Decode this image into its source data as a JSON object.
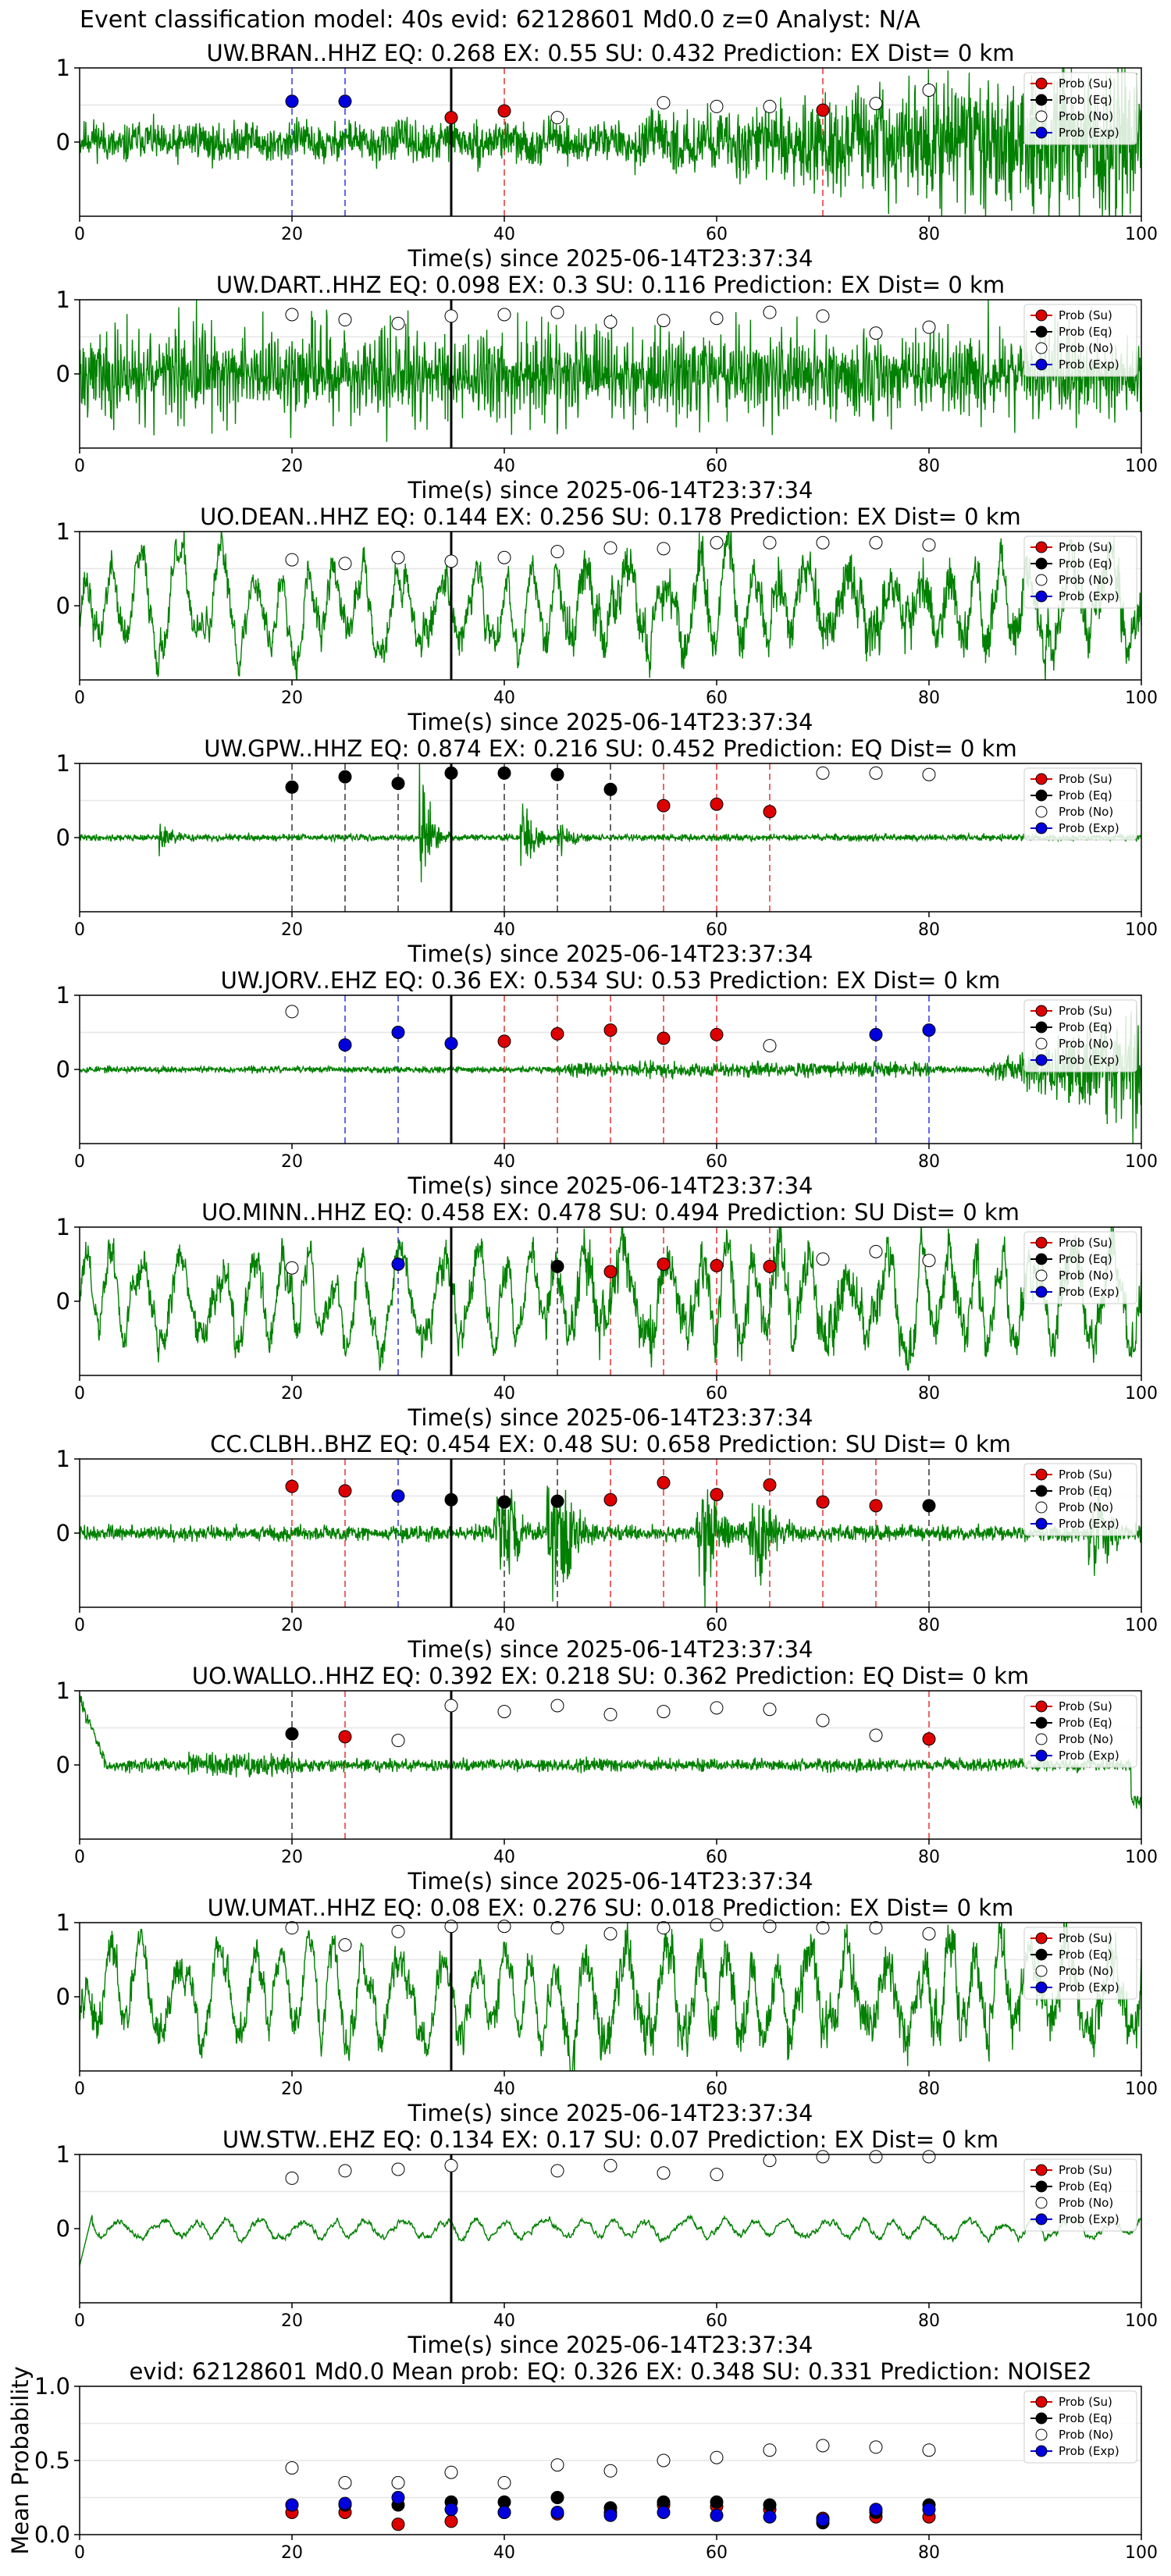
{
  "suptitle": "Event classification model: 40s evid: 62128601 Md0.0 z=0 Analyst: N/A",
  "colors": {
    "su": "#dd0000",
    "eq": "#000000",
    "no": "#ffffff",
    "exp": "#0000dd",
    "trace": "#008000"
  },
  "legend_labels": [
    "Prob (Su)",
    "Prob (Eq)",
    "Prob (No)",
    "Prob (Exp)"
  ],
  "x_axis": {
    "label": "Time(s) since 2025-06-14T23:37:34",
    "ticks": [
      "0",
      "20",
      "40",
      "60",
      "80",
      "100"
    ]
  },
  "chart_data": [
    {
      "type": "line",
      "title": "UW.BRAN..HHZ   EQ: 0.268   EX: 0.55   SU: 0.432   Prediction: EX    Dist= 0 km",
      "xlabel": "Time(s) since 2025-06-14T23:37:34",
      "xlim": [
        0,
        100
      ],
      "ylim": [
        -1,
        1
      ],
      "yticks": [
        "1",
        "0"
      ],
      "grid": true,
      "legend": "top-right",
      "event_line": 35,
      "trace": {
        "seed": 11,
        "style": "noisy_growing",
        "amp": 0.3
      },
      "points": [
        {
          "x": 20,
          "y": 0.55,
          "cls": "exp"
        },
        {
          "x": 25,
          "y": 0.55,
          "cls": "exp"
        },
        {
          "x": 35,
          "y": 0.33,
          "cls": "su"
        },
        {
          "x": 40,
          "y": 0.42,
          "cls": "su"
        },
        {
          "x": 45,
          "y": 0.33,
          "cls": "no"
        },
        {
          "x": 55,
          "y": 0.53,
          "cls": "no"
        },
        {
          "x": 60,
          "y": 0.48,
          "cls": "no"
        },
        {
          "x": 65,
          "y": 0.48,
          "cls": "no"
        },
        {
          "x": 70,
          "y": 0.43,
          "cls": "su"
        },
        {
          "x": 75,
          "y": 0.52,
          "cls": "no"
        },
        {
          "x": 80,
          "y": 0.7,
          "cls": "no"
        }
      ]
    },
    {
      "type": "line",
      "title": "UW.DART..HHZ   EQ: 0.098  EX: 0.3  SU: 0.116   Prediction: EX    Dist= 0 km",
      "xlabel": "Time(s) since 2025-06-14T23:37:34",
      "xlim": [
        0,
        100
      ],
      "ylim": [
        -1,
        1
      ],
      "yticks": [
        "1",
        "0"
      ],
      "grid": true,
      "legend": "top-right",
      "event_line": 35,
      "trace": {
        "seed": 23,
        "style": "dense",
        "amp": 0.55
      },
      "points": [
        {
          "x": 20,
          "y": 0.8,
          "cls": "no"
        },
        {
          "x": 25,
          "y": 0.73,
          "cls": "no"
        },
        {
          "x": 30,
          "y": 0.68,
          "cls": "no"
        },
        {
          "x": 35,
          "y": 0.78,
          "cls": "no"
        },
        {
          "x": 40,
          "y": 0.8,
          "cls": "no"
        },
        {
          "x": 45,
          "y": 0.83,
          "cls": "no"
        },
        {
          "x": 50,
          "y": 0.7,
          "cls": "no"
        },
        {
          "x": 55,
          "y": 0.72,
          "cls": "no"
        },
        {
          "x": 60,
          "y": 0.75,
          "cls": "no"
        },
        {
          "x": 65,
          "y": 0.83,
          "cls": "no"
        },
        {
          "x": 70,
          "y": 0.78,
          "cls": "no"
        },
        {
          "x": 75,
          "y": 0.55,
          "cls": "no"
        },
        {
          "x": 80,
          "y": 0.63,
          "cls": "no"
        }
      ]
    },
    {
      "type": "line",
      "title": "UO.DEAN..HHZ   EQ: 0.144  EX: 0.256  SU: 0.178   Prediction: EX    Dist= 0 km",
      "xlabel": "Time(s) since 2025-06-14T23:37:34",
      "xlim": [
        0,
        100
      ],
      "ylim": [
        -1,
        1
      ],
      "yticks": [
        "1",
        "0"
      ],
      "grid": true,
      "legend": "top-right",
      "event_line": 35,
      "trace": {
        "seed": 37,
        "style": "wavy",
        "amp": 0.45
      },
      "points": [
        {
          "x": 20,
          "y": 0.62,
          "cls": "no"
        },
        {
          "x": 25,
          "y": 0.57,
          "cls": "no"
        },
        {
          "x": 30,
          "y": 0.65,
          "cls": "no"
        },
        {
          "x": 35,
          "y": 0.6,
          "cls": "no"
        },
        {
          "x": 40,
          "y": 0.65,
          "cls": "no"
        },
        {
          "x": 45,
          "y": 0.73,
          "cls": "no"
        },
        {
          "x": 50,
          "y": 0.78,
          "cls": "no"
        },
        {
          "x": 55,
          "y": 0.77,
          "cls": "no"
        },
        {
          "x": 60,
          "y": 0.85,
          "cls": "no"
        },
        {
          "x": 65,
          "y": 0.85,
          "cls": "no"
        },
        {
          "x": 70,
          "y": 0.85,
          "cls": "no"
        },
        {
          "x": 75,
          "y": 0.85,
          "cls": "no"
        },
        {
          "x": 80,
          "y": 0.82,
          "cls": "no"
        }
      ]
    },
    {
      "type": "line",
      "title": "UW.GPW..HHZ   EQ: 0.874  EX: 0.216  SU: 0.452   Prediction: EQ    Dist= 0 km",
      "xlabel": "Time(s) since 2025-06-14T23:37:34",
      "xlim": [
        0,
        100
      ],
      "ylim": [
        -1,
        1
      ],
      "yticks": [
        "1",
        "0"
      ],
      "grid": true,
      "legend": "top-right",
      "event_line": 35,
      "trace": {
        "seed": 41,
        "style": "quiet_bursts",
        "amp": 0.03
      },
      "points": [
        {
          "x": 20,
          "y": 0.68,
          "cls": "eq"
        },
        {
          "x": 25,
          "y": 0.82,
          "cls": "eq"
        },
        {
          "x": 30,
          "y": 0.73,
          "cls": "eq"
        },
        {
          "x": 35,
          "y": 0.87,
          "cls": "eq"
        },
        {
          "x": 40,
          "y": 0.87,
          "cls": "eq"
        },
        {
          "x": 45,
          "y": 0.85,
          "cls": "eq"
        },
        {
          "x": 50,
          "y": 0.65,
          "cls": "eq"
        },
        {
          "x": 55,
          "y": 0.43,
          "cls": "su"
        },
        {
          "x": 60,
          "y": 0.45,
          "cls": "su"
        },
        {
          "x": 65,
          "y": 0.35,
          "cls": "su"
        },
        {
          "x": 70,
          "y": 0.87,
          "cls": "no"
        },
        {
          "x": 75,
          "y": 0.87,
          "cls": "no"
        },
        {
          "x": 80,
          "y": 0.85,
          "cls": "no"
        }
      ]
    },
    {
      "type": "line",
      "title": "UW.JORV..EHZ   EQ: 0.36  EX: 0.534  SU: 0.53   Prediction: EX    Dist= 0 km",
      "xlabel": "Time(s) since 2025-06-14T23:37:34",
      "xlim": [
        0,
        100
      ],
      "ylim": [
        -1,
        1
      ],
      "yticks": [
        "1",
        "0"
      ],
      "grid": true,
      "legend": "top-right",
      "event_line": 35,
      "trace": {
        "seed": 53,
        "style": "quiet_late",
        "amp": 0.03
      },
      "points": [
        {
          "x": 20,
          "y": 0.78,
          "cls": "no"
        },
        {
          "x": 25,
          "y": 0.33,
          "cls": "exp"
        },
        {
          "x": 30,
          "y": 0.5,
          "cls": "exp"
        },
        {
          "x": 35,
          "y": 0.35,
          "cls": "exp"
        },
        {
          "x": 40,
          "y": 0.38,
          "cls": "su"
        },
        {
          "x": 45,
          "y": 0.48,
          "cls": "su"
        },
        {
          "x": 50,
          "y": 0.53,
          "cls": "su"
        },
        {
          "x": 55,
          "y": 0.42,
          "cls": "su"
        },
        {
          "x": 60,
          "y": 0.47,
          "cls": "su"
        },
        {
          "x": 65,
          "y": 0.32,
          "cls": "no"
        },
        {
          "x": 75,
          "y": 0.47,
          "cls": "exp"
        },
        {
          "x": 80,
          "y": 0.53,
          "cls": "exp"
        }
      ]
    },
    {
      "type": "line",
      "title": "UO.MINN..HHZ   EQ: 0.458  EX: 0.478  SU: 0.494   Prediction: SU    Dist= 0 km",
      "xlabel": "Time(s) since 2025-06-14T23:37:34",
      "xlim": [
        0,
        100
      ],
      "ylim": [
        -1,
        1
      ],
      "yticks": [
        "1",
        "0"
      ],
      "grid": true,
      "legend": "top-right",
      "event_line": 35,
      "trace": {
        "seed": 61,
        "style": "wavy",
        "amp": 0.5
      },
      "points": [
        {
          "x": 20,
          "y": 0.45,
          "cls": "no"
        },
        {
          "x": 30,
          "y": 0.5,
          "cls": "exp"
        },
        {
          "x": 45,
          "y": 0.47,
          "cls": "eq"
        },
        {
          "x": 50,
          "y": 0.4,
          "cls": "su"
        },
        {
          "x": 55,
          "y": 0.5,
          "cls": "su"
        },
        {
          "x": 60,
          "y": 0.48,
          "cls": "su"
        },
        {
          "x": 65,
          "y": 0.47,
          "cls": "su"
        },
        {
          "x": 70,
          "y": 0.57,
          "cls": "no"
        },
        {
          "x": 75,
          "y": 0.67,
          "cls": "no"
        },
        {
          "x": 80,
          "y": 0.55,
          "cls": "no"
        }
      ]
    },
    {
      "type": "line",
      "title": "CC.CLBH..BHZ   EQ: 0.454  EX: 0.48  SU: 0.658   Prediction: SU    Dist= 0 km",
      "xlabel": "Time(s) since 2025-06-14T23:37:34",
      "xlim": [
        0,
        100
      ],
      "ylim": [
        -1,
        1
      ],
      "yticks": [
        "1",
        "0"
      ],
      "grid": true,
      "legend": "top-right",
      "event_line": 35,
      "trace": {
        "seed": 73,
        "style": "bursts_mid",
        "amp": 0.08
      },
      "points": [
        {
          "x": 20,
          "y": 0.63,
          "cls": "su"
        },
        {
          "x": 25,
          "y": 0.57,
          "cls": "su"
        },
        {
          "x": 30,
          "y": 0.5,
          "cls": "exp"
        },
        {
          "x": 35,
          "y": 0.45,
          "cls": "eq"
        },
        {
          "x": 40,
          "y": 0.42,
          "cls": "eq"
        },
        {
          "x": 45,
          "y": 0.43,
          "cls": "eq"
        },
        {
          "x": 50,
          "y": 0.45,
          "cls": "su"
        },
        {
          "x": 55,
          "y": 0.68,
          "cls": "su"
        },
        {
          "x": 60,
          "y": 0.52,
          "cls": "su"
        },
        {
          "x": 65,
          "y": 0.65,
          "cls": "su"
        },
        {
          "x": 70,
          "y": 0.42,
          "cls": "su"
        },
        {
          "x": 75,
          "y": 0.37,
          "cls": "su"
        },
        {
          "x": 80,
          "y": 0.37,
          "cls": "eq"
        }
      ]
    },
    {
      "type": "line",
      "title": "UO.WALLO..HHZ   EQ: 0.392  EX: 0.218  SU: 0.362   Prediction: EQ    Dist= 0 km",
      "xlabel": "Time(s) since 2025-06-14T23:37:34",
      "xlim": [
        0,
        100
      ],
      "ylim": [
        -1,
        1
      ],
      "yticks": [
        "1",
        "0"
      ],
      "grid": true,
      "legend": "top-right",
      "event_line": 35,
      "trace": {
        "seed": 83,
        "style": "quiet_start_spike",
        "amp": 0.06
      },
      "points": [
        {
          "x": 20,
          "y": 0.42,
          "cls": "eq"
        },
        {
          "x": 25,
          "y": 0.38,
          "cls": "su"
        },
        {
          "x": 30,
          "y": 0.33,
          "cls": "no"
        },
        {
          "x": 35,
          "y": 0.8,
          "cls": "no"
        },
        {
          "x": 40,
          "y": 0.72,
          "cls": "no"
        },
        {
          "x": 45,
          "y": 0.8,
          "cls": "no"
        },
        {
          "x": 50,
          "y": 0.68,
          "cls": "no"
        },
        {
          "x": 55,
          "y": 0.72,
          "cls": "no"
        },
        {
          "x": 60,
          "y": 0.77,
          "cls": "no"
        },
        {
          "x": 65,
          "y": 0.75,
          "cls": "no"
        },
        {
          "x": 70,
          "y": 0.6,
          "cls": "no"
        },
        {
          "x": 75,
          "y": 0.4,
          "cls": "no"
        },
        {
          "x": 80,
          "y": 0.35,
          "cls": "su"
        }
      ]
    },
    {
      "type": "line",
      "title": "UW.UMAT..HHZ   EQ: 0.08  EX: 0.276  SU: 0.018   Prediction: EX    Dist= 0 km",
      "xlabel": "Time(s) since 2025-06-14T23:37:34",
      "xlim": [
        0,
        100
      ],
      "ylim": [
        -1,
        1
      ],
      "yticks": [
        "1",
        "0"
      ],
      "grid": true,
      "legend": "top-right",
      "event_line": 35,
      "trace": {
        "seed": 97,
        "style": "wavy",
        "amp": 0.5
      },
      "points": [
        {
          "x": 20,
          "y": 0.93,
          "cls": "no"
        },
        {
          "x": 25,
          "y": 0.7,
          "cls": "no"
        },
        {
          "x": 30,
          "y": 0.88,
          "cls": "no"
        },
        {
          "x": 35,
          "y": 0.95,
          "cls": "no"
        },
        {
          "x": 40,
          "y": 0.95,
          "cls": "no"
        },
        {
          "x": 45,
          "y": 0.93,
          "cls": "no"
        },
        {
          "x": 50,
          "y": 0.85,
          "cls": "no"
        },
        {
          "x": 55,
          "y": 0.93,
          "cls": "no"
        },
        {
          "x": 60,
          "y": 0.97,
          "cls": "no"
        },
        {
          "x": 65,
          "y": 0.95,
          "cls": "no"
        },
        {
          "x": 70,
          "y": 0.93,
          "cls": "no"
        },
        {
          "x": 75,
          "y": 0.93,
          "cls": "no"
        },
        {
          "x": 80,
          "y": 0.85,
          "cls": "no"
        }
      ]
    },
    {
      "type": "line",
      "title": "UW.STW..EHZ   EQ: 0.134  EX: 0.17  SU: 0.07   Prediction: EX    Dist= 0 km",
      "xlabel": "Time(s) since 2025-06-14T23:37:34",
      "xlim": [
        0,
        100
      ],
      "ylim": [
        -1,
        1
      ],
      "yticks": [
        "1",
        "0"
      ],
      "grid": true,
      "legend": "top-right",
      "event_line": 35,
      "trace": {
        "seed": 101,
        "style": "smooth_small",
        "amp": 0.12
      },
      "points": [
        {
          "x": 20,
          "y": 0.68,
          "cls": "no"
        },
        {
          "x": 25,
          "y": 0.78,
          "cls": "no"
        },
        {
          "x": 30,
          "y": 0.8,
          "cls": "no"
        },
        {
          "x": 35,
          "y": 0.85,
          "cls": "no"
        },
        {
          "x": 45,
          "y": 0.78,
          "cls": "no"
        },
        {
          "x": 50,
          "y": 0.85,
          "cls": "no"
        },
        {
          "x": 55,
          "y": 0.75,
          "cls": "no"
        },
        {
          "x": 60,
          "y": 0.73,
          "cls": "no"
        },
        {
          "x": 65,
          "y": 0.92,
          "cls": "no"
        },
        {
          "x": 70,
          "y": 0.97,
          "cls": "no"
        },
        {
          "x": 75,
          "y": 0.97,
          "cls": "no"
        },
        {
          "x": 80,
          "y": 0.97,
          "cls": "no"
        }
      ]
    },
    {
      "type": "scatter",
      "title": "evid: 62128601  Md0.0   Mean prob:   EQ: 0.326  EX: 0.348  SU: 0.331   Prediction: NOISE2",
      "xlabel": "",
      "ylabel": "Mean Probability",
      "xlim": [
        0,
        100
      ],
      "ylim": [
        0,
        1
      ],
      "yticks": [
        "1.0",
        "0.5",
        "0.0"
      ],
      "grid": true,
      "legend": "top-right",
      "series": [
        {
          "name": "Prob (Su)",
          "cls": "su",
          "x": [
            20,
            25,
            30,
            35,
            40,
            45,
            50,
            55,
            60,
            65,
            70,
            75,
            80
          ],
          "y": [
            0.15,
            0.15,
            0.07,
            0.09,
            0.15,
            0.14,
            0.15,
            0.2,
            0.19,
            0.17,
            0.11,
            0.12,
            0.12
          ]
        },
        {
          "name": "Prob (Eq)",
          "cls": "eq",
          "x": [
            20,
            25,
            30,
            35,
            40,
            45,
            50,
            55,
            60,
            65,
            70,
            75,
            80
          ],
          "y": [
            0.2,
            0.2,
            0.2,
            0.22,
            0.22,
            0.25,
            0.18,
            0.22,
            0.22,
            0.2,
            0.08,
            0.15,
            0.2
          ]
        },
        {
          "name": "Prob (No)",
          "cls": "no",
          "x": [
            20,
            25,
            30,
            35,
            40,
            45,
            50,
            55,
            60,
            65,
            70,
            75,
            80
          ],
          "y": [
            0.45,
            0.35,
            0.35,
            0.42,
            0.35,
            0.47,
            0.43,
            0.5,
            0.52,
            0.57,
            0.6,
            0.59,
            0.57
          ]
        },
        {
          "name": "Prob (Exp)",
          "cls": "exp",
          "x": [
            20,
            25,
            30,
            35,
            40,
            45,
            50,
            55,
            60,
            65,
            70,
            75,
            80
          ],
          "y": [
            0.2,
            0.21,
            0.25,
            0.17,
            0.15,
            0.15,
            0.13,
            0.15,
            0.13,
            0.12,
            0.1,
            0.17,
            0.17
          ]
        }
      ]
    }
  ]
}
